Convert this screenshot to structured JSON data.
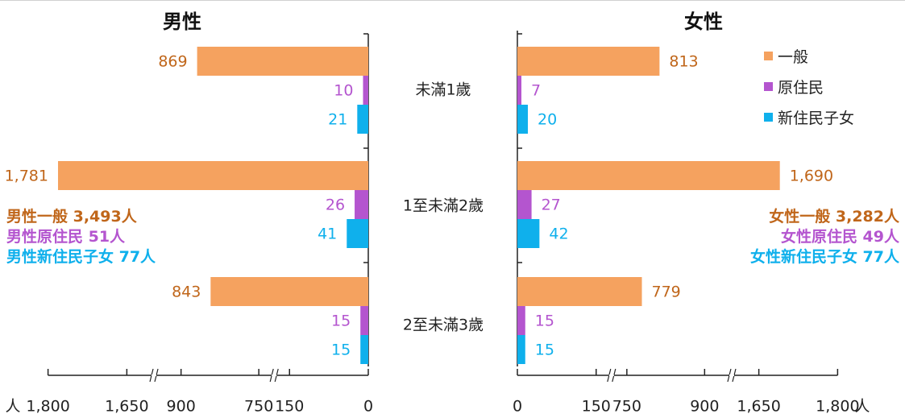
{
  "titles": {
    "male": "男性",
    "female": "女性"
  },
  "legend": [
    {
      "label": "一般",
      "color": "#f5a25f"
    },
    {
      "label": "原住民",
      "color": "#b455cf"
    },
    {
      "label": "新住民子女",
      "color": "#0fb0ec"
    }
  ],
  "summary": {
    "male": [
      "男性一般 3,493人",
      "男性原住民 51人",
      "男性新住民子女 77人"
    ],
    "female": [
      "女性一般 3,282人",
      "女性原住民 49人",
      "女性新住民子女 77人"
    ]
  },
  "colors": {
    "general": "#f5a25f",
    "indigenous": "#b455cf",
    "newimm": "#0fb0ec",
    "label_general": "#c0661a",
    "axis": "#222222"
  },
  "chart_data": {
    "type": "bar",
    "orientation": "horizontal-butterfly",
    "categories": [
      "未滿1歲",
      "1至未滿2歲",
      "2至未滿3歲"
    ],
    "male": {
      "title": "男性",
      "series": [
        {
          "name": "一般",
          "values": [
            869,
            1781,
            843
          ],
          "labels": [
            "869",
            "1,781",
            "843"
          ]
        },
        {
          "name": "原住民",
          "values": [
            10,
            26,
            15
          ],
          "labels": [
            "10",
            "26",
            "15"
          ]
        },
        {
          "name": "新住民子女",
          "values": [
            21,
            41,
            15
          ],
          "labels": [
            "21",
            "41",
            "15"
          ]
        }
      ],
      "x_ticks": [
        "1,800",
        "1,650",
        "900",
        "750",
        "150",
        "0"
      ],
      "axis_unit": "人",
      "axis_breaks": true
    },
    "female": {
      "title": "女性",
      "series": [
        {
          "name": "一般",
          "values": [
            813,
            1690,
            779
          ],
          "labels": [
            "813",
            "1,690",
            "779"
          ]
        },
        {
          "name": "原住民",
          "values": [
            7,
            27,
            15
          ],
          "labels": [
            "7",
            "27",
            "15"
          ]
        },
        {
          "name": "新住民子女",
          "values": [
            20,
            42,
            15
          ],
          "labels": [
            "20",
            "42",
            "15"
          ]
        }
      ],
      "x_ticks": [
        "0",
        "150",
        "750",
        "900",
        "1,650",
        "1,800"
      ],
      "axis_unit": "人",
      "axis_breaks": true
    }
  }
}
